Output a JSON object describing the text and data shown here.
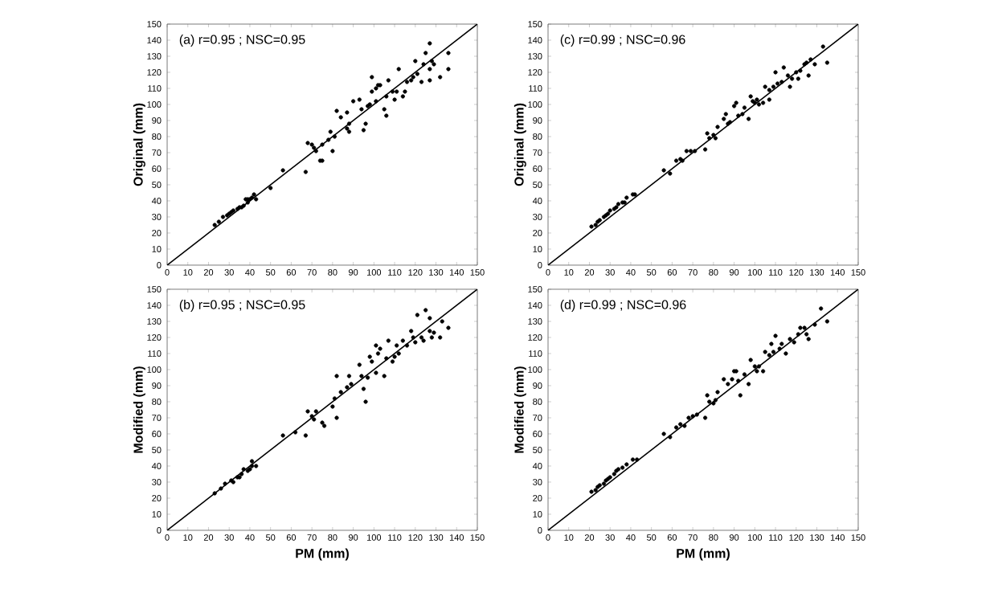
{
  "chart_data": [
    {
      "type": "scatter",
      "ylabel": "Original (mm)",
      "annotations": [
        "(a) r=0.95 ; NSC=0.95"
      ],
      "xlim": [
        0,
        150
      ],
      "ylim": [
        0,
        150
      ],
      "xticks": [
        0,
        10,
        20,
        30,
        40,
        50,
        60,
        70,
        80,
        90,
        100,
        110,
        120,
        130,
        140,
        150
      ],
      "yticks": [
        0,
        10,
        20,
        30,
        40,
        50,
        60,
        70,
        80,
        90,
        100,
        110,
        120,
        130,
        140,
        150
      ],
      "series": [
        {
          "marker": "circle",
          "color": "#000000",
          "x": [
            23,
            25,
            27,
            30,
            31,
            32,
            34,
            35,
            37,
            39,
            40,
            41,
            42,
            39,
            36,
            29,
            38,
            43,
            56,
            50,
            67,
            68,
            70,
            71,
            72,
            74,
            75,
            75,
            78,
            81,
            80,
            79,
            82,
            84,
            87,
            87,
            88,
            88,
            90,
            93,
            94,
            96,
            95,
            97,
            98,
            99,
            99,
            101,
            102,
            103,
            101,
            105,
            106,
            106,
            107,
            109,
            110,
            111,
            112,
            114,
            115,
            116,
            118,
            119,
            120,
            121,
            123,
            124,
            125,
            127,
            127,
            128,
            129,
            132,
            136,
            136,
            127
          ],
          "values": [
            25,
            27,
            30,
            32,
            33,
            34,
            35,
            36,
            37,
            39,
            41,
            42,
            44,
            41,
            36,
            31,
            41,
            41,
            59,
            48,
            58,
            76,
            75,
            73,
            71,
            65,
            65,
            75,
            78,
            80,
            71,
            83,
            96,
            92,
            95,
            85,
            83,
            88,
            102,
            103,
            97,
            88,
            84,
            99,
            100,
            108,
            117,
            110,
            112,
            112,
            102,
            97,
            93,
            105,
            115,
            108,
            103,
            108,
            122,
            105,
            108,
            114,
            115,
            117,
            127,
            119,
            114,
            125,
            132,
            122,
            115,
            127,
            125,
            117,
            132,
            122,
            138
          ]
        },
        {
          "type": "line",
          "marker": "none",
          "color": "#000000",
          "x": [
            0,
            150
          ],
          "values": [
            0,
            150
          ]
        }
      ]
    },
    {
      "type": "scatter",
      "ylabel": "Original (mm)",
      "annotations": [
        "(c) r=0.99 ; NSC=0.96"
      ],
      "xlim": [
        0,
        150
      ],
      "ylim": [
        0,
        150
      ],
      "xticks": [
        0,
        10,
        20,
        30,
        40,
        50,
        60,
        70,
        80,
        90,
        100,
        110,
        120,
        130,
        140,
        150
      ],
      "yticks": [
        0,
        10,
        20,
        30,
        40,
        50,
        60,
        70,
        80,
        90,
        100,
        110,
        120,
        130,
        140,
        150
      ],
      "series": [
        {
          "marker": "circle",
          "color": "#000000",
          "x": [
            21,
            23,
            24,
            25,
            27,
            28,
            29,
            30,
            32,
            33,
            34,
            36,
            38,
            41,
            42,
            37,
            56,
            59,
            62,
            64,
            65,
            67,
            69,
            71,
            76,
            77,
            78,
            80,
            81,
            82,
            85,
            86,
            87,
            88,
            90,
            91,
            92,
            94,
            95,
            97,
            98,
            99,
            100,
            101,
            102,
            104,
            105,
            107,
            107,
            109,
            110,
            111,
            113,
            114,
            116,
            117,
            118,
            120,
            121,
            122,
            124,
            125,
            126,
            127,
            133,
            135,
            129
          ],
          "values": [
            24,
            25,
            27,
            28,
            30,
            31,
            32,
            34,
            35,
            36,
            38,
            39,
            42,
            44,
            44,
            39,
            59,
            57,
            65,
            66,
            65,
            71,
            71,
            71,
            72,
            82,
            79,
            81,
            79,
            86,
            91,
            94,
            88,
            89,
            99,
            101,
            93,
            94,
            98,
            91,
            105,
            102,
            101,
            103,
            100,
            101,
            111,
            103,
            109,
            111,
            120,
            113,
            114,
            123,
            118,
            111,
            116,
            120,
            116,
            121,
            125,
            126,
            118,
            128,
            136,
            126,
            125
          ]
        },
        {
          "type": "line",
          "marker": "none",
          "color": "#000000",
          "x": [
            0,
            150
          ],
          "values": [
            0,
            150
          ]
        }
      ]
    },
    {
      "type": "scatter",
      "ylabel": "Modified (mm)",
      "xlabel": "PM (mm)",
      "annotations": [
        "(b) r=0.95 ; NSC=0.95"
      ],
      "xlim": [
        0,
        150
      ],
      "ylim": [
        0,
        150
      ],
      "xticks": [
        0,
        10,
        20,
        30,
        40,
        50,
        60,
        70,
        80,
        90,
        100,
        110,
        120,
        130,
        140,
        150
      ],
      "yticks": [
        0,
        10,
        20,
        30,
        40,
        50,
        60,
        70,
        80,
        90,
        100,
        110,
        120,
        130,
        140,
        150
      ],
      "series": [
        {
          "marker": "circle",
          "color": "#000000",
          "x": [
            23,
            26,
            28,
            31,
            34,
            36,
            39,
            40,
            41,
            43,
            37,
            35,
            32,
            41,
            56,
            62,
            67,
            68,
            70,
            71,
            72,
            75,
            76,
            80,
            81,
            82,
            84,
            82,
            88,
            89,
            87,
            93,
            94,
            95,
            96,
            97,
            98,
            99,
            101,
            102,
            103,
            101,
            105,
            106,
            107,
            109,
            110,
            111,
            112,
            114,
            116,
            118,
            119,
            120,
            121,
            123,
            124,
            125,
            127,
            128,
            129,
            132,
            133,
            136,
            127
          ],
          "values": [
            23,
            26,
            29,
            31,
            33,
            35,
            37,
            38,
            40,
            40,
            38,
            33,
            30,
            43,
            59,
            61,
            59,
            74,
            71,
            69,
            74,
            67,
            65,
            77,
            82,
            70,
            86,
            96,
            96,
            91,
            89,
            103,
            96,
            88,
            80,
            95,
            108,
            105,
            115,
            110,
            113,
            98,
            96,
            107,
            118,
            105,
            108,
            115,
            110,
            118,
            115,
            124,
            120,
            117,
            134,
            120,
            118,
            137,
            124,
            120,
            123,
            120,
            130,
            126,
            132
          ]
        },
        {
          "type": "line",
          "marker": "none",
          "color": "#000000",
          "x": [
            0,
            150
          ],
          "values": [
            0,
            150
          ]
        }
      ]
    },
    {
      "type": "scatter",
      "ylabel": "Modified (mm)",
      "xlabel": "PM (mm)",
      "annotations": [
        "(d) r=0.99 ; NSC=0.96"
      ],
      "xlim": [
        0,
        150
      ],
      "ylim": [
        0,
        150
      ],
      "xticks": [
        0,
        10,
        20,
        30,
        40,
        50,
        60,
        70,
        80,
        90,
        100,
        110,
        120,
        130,
        140,
        150
      ],
      "yticks": [
        0,
        10,
        20,
        30,
        40,
        50,
        60,
        70,
        80,
        90,
        100,
        110,
        120,
        130,
        140,
        150
      ],
      "series": [
        {
          "marker": "circle",
          "color": "#000000",
          "x": [
            21,
            23,
            24,
            25,
            27,
            28,
            29,
            30,
            32,
            33,
            34,
            36,
            38,
            41,
            43,
            56,
            59,
            62,
            64,
            66,
            68,
            70,
            72,
            76,
            77,
            78,
            80,
            81,
            82,
            85,
            87,
            89,
            90,
            91,
            92,
            93,
            95,
            97,
            98,
            100,
            101,
            102,
            104,
            105,
            107,
            108,
            109,
            110,
            112,
            113,
            115,
            117,
            119,
            121,
            122,
            124,
            125,
            126,
            129,
            132,
            135
          ],
          "values": [
            24,
            25,
            27,
            28,
            29,
            31,
            32,
            33,
            35,
            37,
            38,
            39,
            41,
            44,
            44,
            60,
            58,
            64,
            66,
            65,
            70,
            71,
            72,
            70,
            84,
            80,
            79,
            81,
            86,
            94,
            91,
            94,
            99,
            99,
            93,
            84,
            97,
            91,
            106,
            102,
            99,
            102,
            99,
            111,
            109,
            116,
            111,
            121,
            113,
            116,
            110,
            119,
            117,
            122,
            126,
            126,
            122,
            119,
            128,
            138,
            130
          ]
        },
        {
          "type": "line",
          "marker": "none",
          "color": "#000000",
          "x": [
            0,
            150
          ],
          "values": [
            0,
            150
          ]
        }
      ]
    }
  ]
}
